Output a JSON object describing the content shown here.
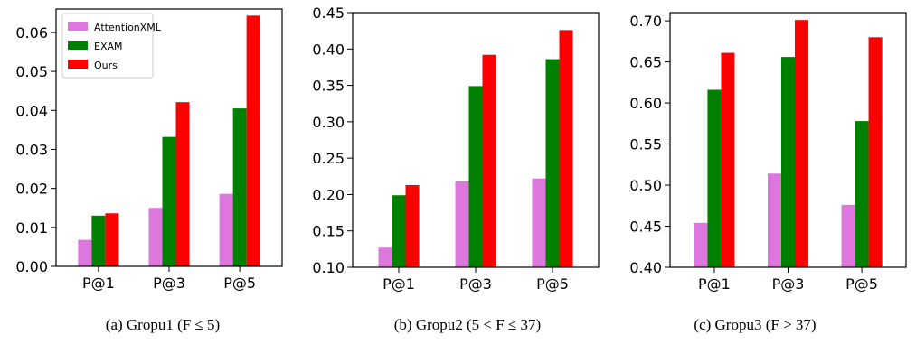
{
  "colors": {
    "AttentionXML": "#dd77dd",
    "EXAM": "#008000",
    "Ours": "#ff0000"
  },
  "chart_data": [
    {
      "type": "bar",
      "categories": [
        "P@1",
        "P@3",
        "P@5"
      ],
      "series": [
        {
          "name": "AttentionXML",
          "values": [
            0.0068,
            0.015,
            0.0186
          ]
        },
        {
          "name": "EXAM",
          "values": [
            0.013,
            0.0332,
            0.0405
          ]
        },
        {
          "name": "Ours",
          "values": [
            0.0136,
            0.0421,
            0.0643
          ]
        }
      ],
      "ylim": [
        0,
        0.066
      ],
      "yticks": [
        "0.00",
        "0.01",
        "0.02",
        "0.03",
        "0.04",
        "0.05",
        "0.06"
      ],
      "ytick_values": [
        0,
        0.01,
        0.02,
        0.03,
        0.04,
        0.05,
        0.06
      ],
      "legend": "top-left",
      "caption": "(a) Gropu1 (F ≤ 5)"
    },
    {
      "type": "bar",
      "categories": [
        "P@1",
        "P@3",
        "P@5"
      ],
      "series": [
        {
          "name": "AttentionXML",
          "values": [
            0.127,
            0.218,
            0.222
          ]
        },
        {
          "name": "EXAM",
          "values": [
            0.199,
            0.349,
            0.386
          ]
        },
        {
          "name": "Ours",
          "values": [
            0.213,
            0.392,
            0.426
          ]
        }
      ],
      "ylim": [
        0.1,
        0.45
      ],
      "yticks": [
        "0.10",
        "0.15",
        "0.20",
        "0.25",
        "0.30",
        "0.35",
        "0.40",
        "0.45"
      ],
      "ytick_values": [
        0.1,
        0.15,
        0.2,
        0.25,
        0.3,
        0.35,
        0.4,
        0.45
      ],
      "caption": "(b) Gropu2 (5 < F ≤ 37)"
    },
    {
      "type": "bar",
      "categories": [
        "P@1",
        "P@3",
        "P@5"
      ],
      "series": [
        {
          "name": "AttentionXML",
          "values": [
            0.454,
            0.514,
            0.476
          ]
        },
        {
          "name": "EXAM",
          "values": [
            0.616,
            0.656,
            0.578
          ]
        },
        {
          "name": "Ours",
          "values": [
            0.661,
            0.701,
            0.68
          ]
        }
      ],
      "ylim": [
        0.4,
        0.71
      ],
      "yticks": [
        "0.40",
        "0.45",
        "0.50",
        "0.55",
        "0.60",
        "0.65",
        "0.70"
      ],
      "ytick_values": [
        0.4,
        0.45,
        0.5,
        0.55,
        0.6,
        0.65,
        0.7
      ],
      "caption": "(c) Gropu3 (F > 37)"
    }
  ]
}
